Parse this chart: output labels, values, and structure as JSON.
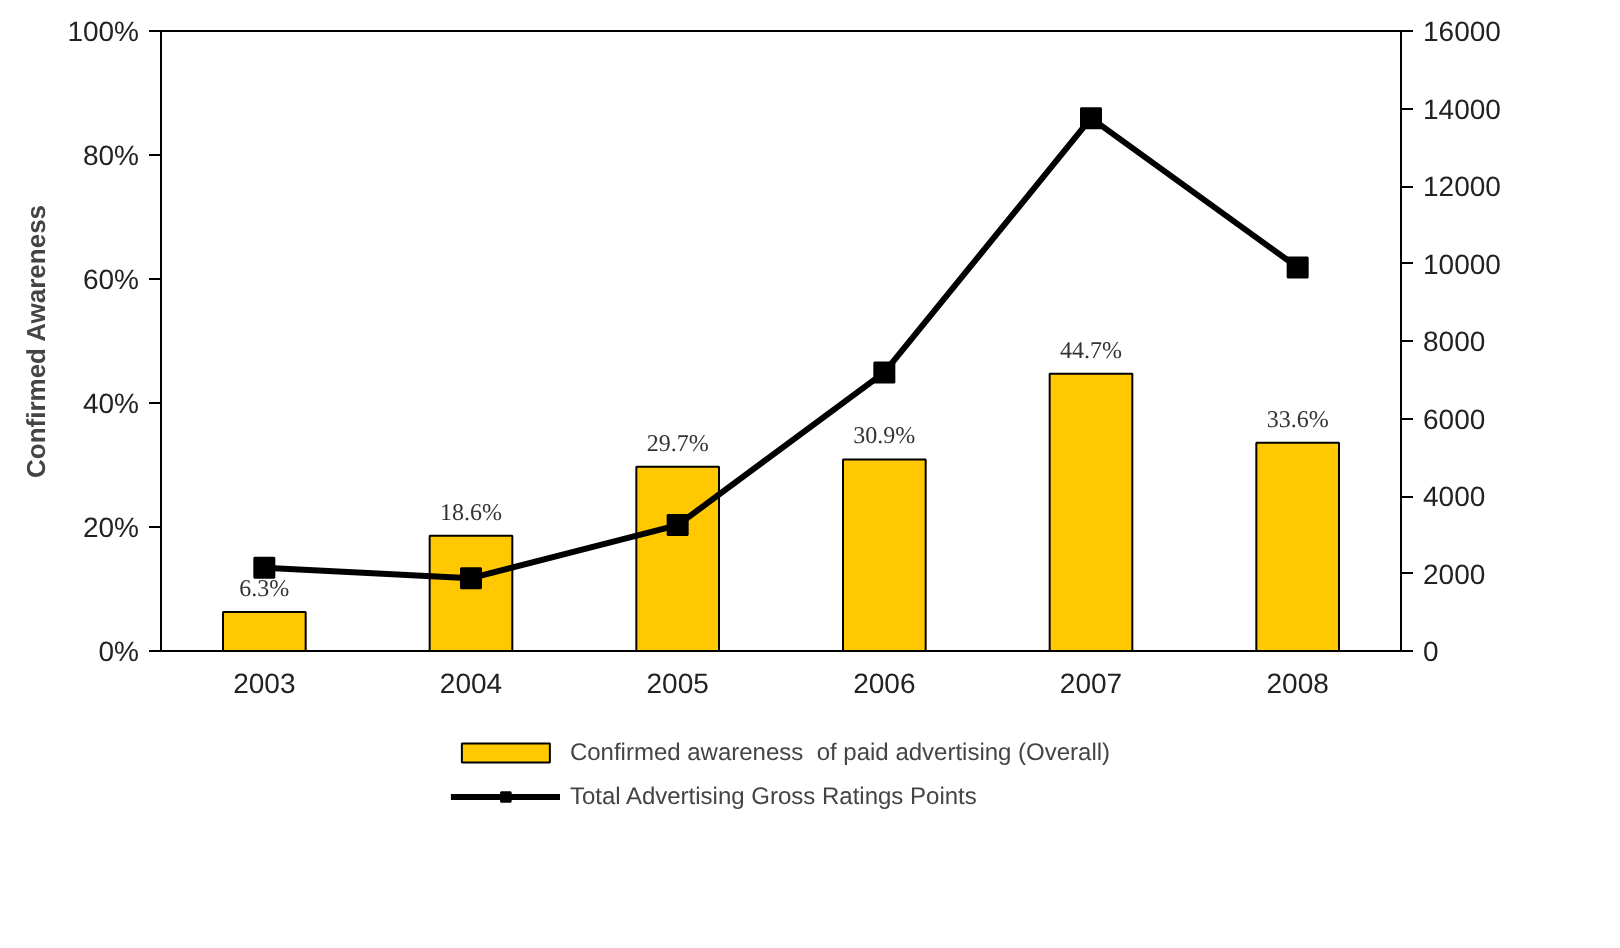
{
  "chart_data": {
    "type": "bar",
    "ylabel": "Confirmed Awareness",
    "categories": [
      "2003",
      "2004",
      "2005",
      "2006",
      "2007",
      "2008"
    ],
    "ylim": [
      0,
      100
    ],
    "yticks": [
      {
        "value": 0,
        "label": "0%"
      },
      {
        "value": 20,
        "label": "20%"
      },
      {
        "value": 40,
        "label": "40%"
      },
      {
        "value": 60,
        "label": "60%"
      },
      {
        "value": 80,
        "label": "80%"
      },
      {
        "value": 100,
        "label": "100%"
      }
    ],
    "y2lim": [
      0,
      16000
    ],
    "y2ticks": [
      0,
      2000,
      4000,
      6000,
      8000,
      10000,
      12000,
      14000,
      16000
    ],
    "series": [
      {
        "name": "Confirmed awareness  of paid advertising (Overall)",
        "color": "#ffc800",
        "values": [
          6.3,
          18.6,
          29.7,
          30.9,
          44.7,
          33.6
        ],
        "value_labels": [
          "6.3%",
          "18.6%",
          "29.7%",
          "30.9%",
          "44.7%",
          "33.6%"
        ]
      },
      {
        "name": "Total Advertising Gross Ratings Points",
        "type": "line",
        "axis": "y2",
        "color": "#000000",
        "marker": "square",
        "values": [
          2150,
          1880,
          3250,
          7190,
          13750,
          9900
        ]
      }
    ],
    "grid": false,
    "legend": "bottom"
  }
}
